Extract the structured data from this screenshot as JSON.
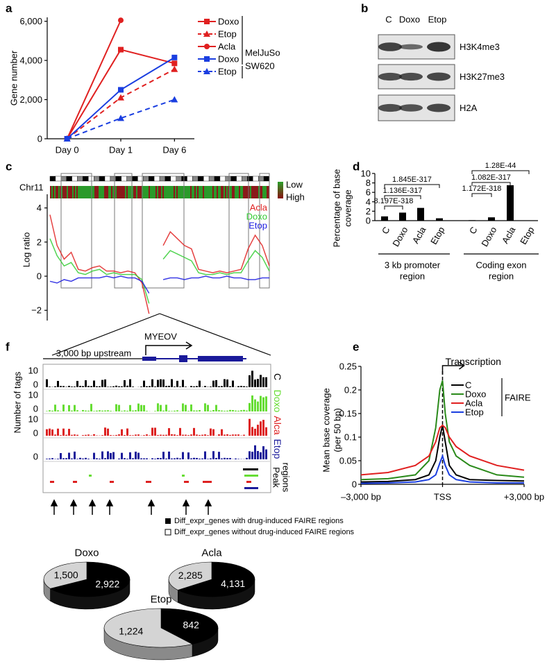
{
  "panel_labels": [
    "a",
    "b",
    "c",
    "d",
    "e",
    "f"
  ],
  "blot": {
    "columns": [
      "C",
      "Doxo",
      "Etop"
    ],
    "rows": [
      "H3K4me3",
      "H3K27me3",
      "H2A"
    ]
  },
  "panel_c": {
    "chromosome": "Chr11",
    "heat_legend": [
      "Low",
      "High"
    ]
  },
  "panel_f": {
    "gene": "MYEOV",
    "upstream": "3,000 bp upstream",
    "ylabel": "Number of tags",
    "tracks": [
      {
        "name": "C",
        "color": "#000000",
        "ticks": [
          "10",
          "0"
        ]
      },
      {
        "name": "Doxo",
        "color": "#66dd33",
        "ticks": [
          "10",
          "0"
        ]
      },
      {
        "name": "Alca",
        "color": "#dd2020",
        "ticks": [
          "10",
          "0"
        ]
      },
      {
        "name": "Etop",
        "color": "#1a1a9a",
        "ticks": [
          "0"
        ]
      }
    ],
    "peak_label_lines": [
      "Peak",
      "regions"
    ]
  },
  "pie_legend": [
    "Diff_expr_genes with drug-induced FAIRE regions",
    "Diff_expr_genes without drug-induced FAIRE regions"
  ],
  "chart_data": [
    {
      "type": "line",
      "ylabel": "Gene number",
      "categories": [
        "Day 0",
        "Day 1",
        "Day 6"
      ],
      "ylim": [
        0,
        6200
      ],
      "yticks": [
        0,
        {
          "value": 2000,
          "label": "2,000"
        },
        {
          "value": 4000,
          "label": "4,000"
        },
        {
          "value": 6000,
          "label": "6,000"
        }
      ],
      "legend_groups": [
        "MelJuSo",
        "SW620"
      ],
      "series": [
        {
          "name": "Doxo",
          "color": "#e02020",
          "marker": "square",
          "dash": false,
          "values": [
            0,
            4550,
            3850
          ]
        },
        {
          "name": "Etop",
          "color": "#e02020",
          "marker": "triangle",
          "dash": true,
          "values": [
            0,
            2100,
            3550
          ]
        },
        {
          "name": "Acla",
          "color": "#e02020",
          "marker": "circle",
          "dash": false,
          "values": [
            0,
            6050,
            null
          ]
        },
        {
          "name": "Doxo",
          "color": "#1a3ee0",
          "marker": "square",
          "dash": false,
          "values": [
            0,
            2500,
            4150
          ]
        },
        {
          "name": "Etop",
          "color": "#1a3ee0",
          "marker": "triangle",
          "dash": true,
          "values": [
            0,
            1050,
            2000
          ]
        }
      ]
    },
    {
      "type": "signal",
      "ylabel": "Log ratio",
      "ylim": [
        -2.6,
        4.8
      ],
      "yticks": [
        {
          "value": -2,
          "label": "−2"
        },
        0,
        2,
        4
      ],
      "series": [
        {
          "name": "Acla",
          "color": "#e02020",
          "values": [
            3.6,
            1.8,
            1,
            1.4,
            0.4,
            0.3,
            0.5,
            0.6,
            0.3,
            0.3,
            0.2,
            0.3,
            0.2,
            -0.4,
            -2.2,
            null,
            1.8,
            2.6,
            2.2,
            1.8,
            1.6,
            0.4,
            0.3,
            0.2,
            0.3,
            0.2,
            0.3,
            0.4,
            1.6,
            2.4,
            1.8,
            0.6
          ]
        },
        {
          "name": "Doxo",
          "color": "#33cc33",
          "values": [
            2.2,
            1.2,
            0.6,
            0.8,
            0.2,
            0.1,
            0.3,
            0.4,
            0.1,
            0.2,
            0.1,
            0.1,
            0.1,
            -0.2,
            -1.6,
            null,
            1,
            1.5,
            1.3,
            1.1,
            0.9,
            0.2,
            0.1,
            0.1,
            0.2,
            0.1,
            0.2,
            0.2,
            0.9,
            1.5,
            1.1,
            0.3
          ]
        },
        {
          "name": "Etop",
          "color": "#1a1ae0",
          "values": [
            -0.3,
            -0.4,
            -0.2,
            -0.3,
            -0.1,
            -0.1,
            -0.1,
            -0.1,
            0,
            -0.1,
            0,
            -0.1,
            -0.1,
            -0.3,
            -1,
            null,
            -0.2,
            -0.1,
            -0.1,
            -0.2,
            -0.1,
            -0.1,
            0,
            -0.1,
            -0.1,
            0,
            -0.1,
            -0.1,
            -0.2,
            -0.2,
            -0.1,
            -0.1
          ]
        }
      ]
    },
    {
      "type": "bar",
      "ylabel_lines": [
        "Percentage of base",
        "coverage"
      ],
      "categories": [
        "C",
        "Doxo",
        "Acla",
        "Etop",
        "C",
        "Doxo",
        "Acla",
        "Etop"
      ],
      "values": [
        0.9,
        1.7,
        2.7,
        0.5,
        0.1,
        0.7,
        7.5,
        0.05
      ],
      "color": "#000000",
      "ylim": [
        0,
        10
      ],
      "yticks": [
        0,
        2,
        4,
        6,
        8,
        10
      ],
      "group_label_lines": [
        [
          "3 kb promoter",
          "region"
        ],
        [
          "Coding exon",
          "region"
        ]
      ],
      "annotations": [
        "8.197E-318",
        "1.136E-317",
        "1.845E-317",
        "1.172E-318",
        "1.082E-317",
        "1.28E-44"
      ]
    },
    {
      "type": "line",
      "ylabel_lines": [
        "Mean base coverage",
        "(per 50 bp)"
      ],
      "xlim": [
        -3000,
        3000
      ],
      "xticks": [
        {
          "value": -3000,
          "label": "–3,000 bp"
        },
        {
          "value": 0,
          "label": "TSS"
        },
        {
          "value": 3000,
          "label": "+3,000 bp"
        }
      ],
      "ylim": [
        0,
        0.25
      ],
      "yticks": [
        0,
        0.05,
        0.1,
        0.15,
        0.2,
        0.25
      ],
      "annotation": "Transcription",
      "legend_group": "FAIRE",
      "x": [
        -3000,
        -2000,
        -1000,
        -500,
        -250,
        -100,
        0,
        100,
        250,
        500,
        1000,
        2000,
        3000
      ],
      "series": [
        {
          "name": "C",
          "color": "#000000",
          "values": [
            0.005,
            0.006,
            0.01,
            0.02,
            0.05,
            0.1,
            0.125,
            0.09,
            0.04,
            0.02,
            0.01,
            0.008,
            0.007
          ]
        },
        {
          "name": "Doxo",
          "color": "#2a8a1a",
          "values": [
            0.01,
            0.012,
            0.02,
            0.05,
            0.12,
            0.2,
            0.22,
            0.15,
            0.09,
            0.06,
            0.04,
            0.02,
            0.015
          ]
        },
        {
          "name": "Acla",
          "color": "#e02020",
          "values": [
            0.02,
            0.025,
            0.04,
            0.06,
            0.09,
            0.12,
            0.125,
            0.12,
            0.1,
            0.08,
            0.06,
            0.04,
            0.03
          ]
        },
        {
          "name": "Etop",
          "color": "#1a3ee0",
          "values": [
            0.002,
            0.003,
            0.005,
            0.01,
            0.02,
            0.045,
            0.06,
            0.04,
            0.02,
            0.01,
            0.005,
            0.003,
            0.003
          ]
        }
      ]
    },
    {
      "type": "pie",
      "title": "Doxo",
      "values": [
        1500,
        2922
      ],
      "value_labels": [
        "1,500",
        "2,922"
      ],
      "colors": [
        "#d4d4d4",
        "#000000"
      ]
    },
    {
      "type": "pie",
      "title": "Acla",
      "values": [
        2285,
        4131
      ],
      "value_labels": [
        "2,285",
        "4,131"
      ],
      "colors": [
        "#d4d4d4",
        "#000000"
      ]
    },
    {
      "type": "pie",
      "title": "Etop",
      "values": [
        1224,
        842
      ],
      "value_labels": [
        "1,224",
        "842"
      ],
      "colors": [
        "#d4d4d4",
        "#000000"
      ]
    }
  ]
}
